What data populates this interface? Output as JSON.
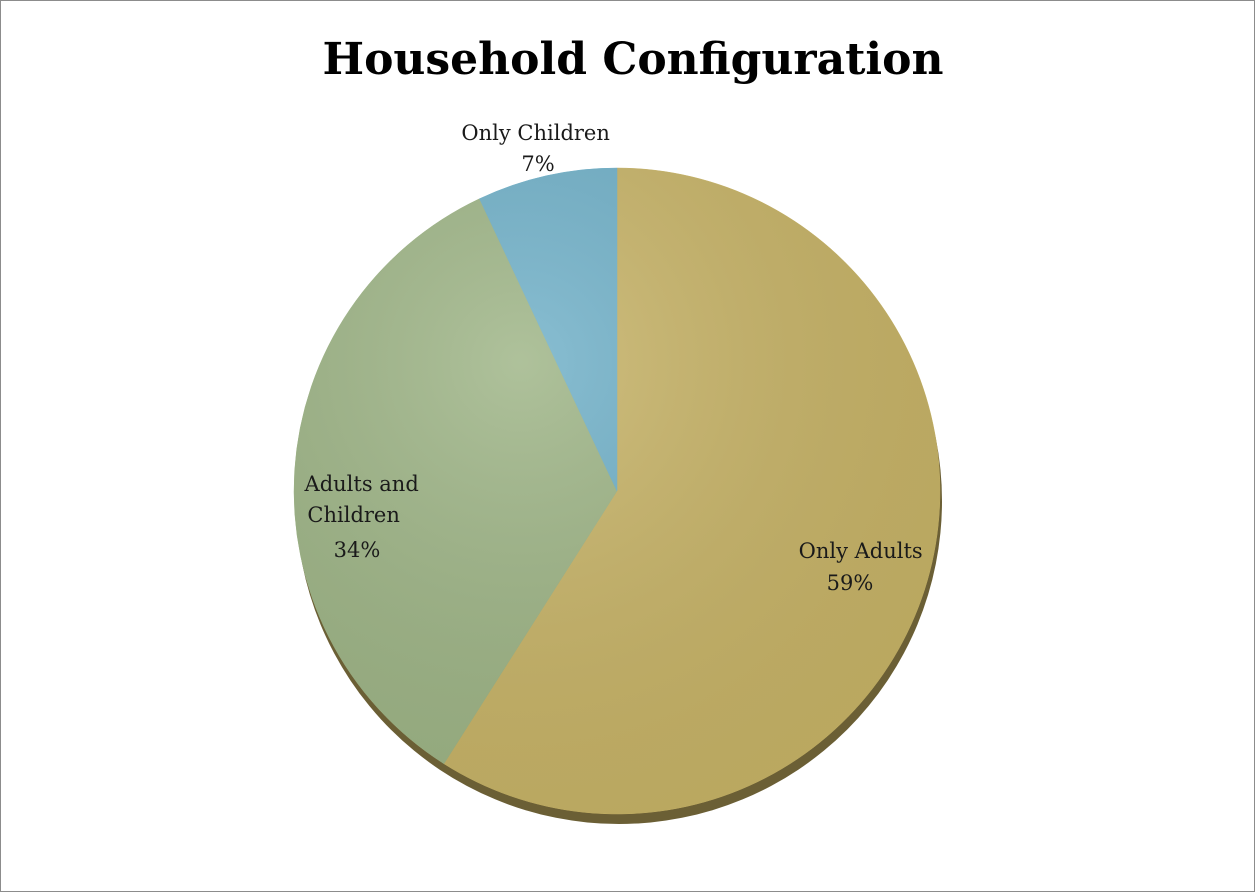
{
  "chart_data": {
    "type": "pie",
    "title": "Household Configuration",
    "categories": [
      "Only Adults",
      "Adults and Children",
      "Only Children"
    ],
    "values": [
      59,
      34,
      7
    ],
    "unit": "%",
    "colors": [
      "#c7b366",
      "#9db485",
      "#6fb0c8"
    ],
    "labels": [
      {
        "lines": [
          "Only Adults"
        ],
        "pct": "59%"
      },
      {
        "lines": [
          "Adults and",
          "Children"
        ],
        "pct": "34%"
      },
      {
        "lines": [
          "Only Children"
        ],
        "pct": "7%"
      }
    ],
    "legend": "none"
  }
}
